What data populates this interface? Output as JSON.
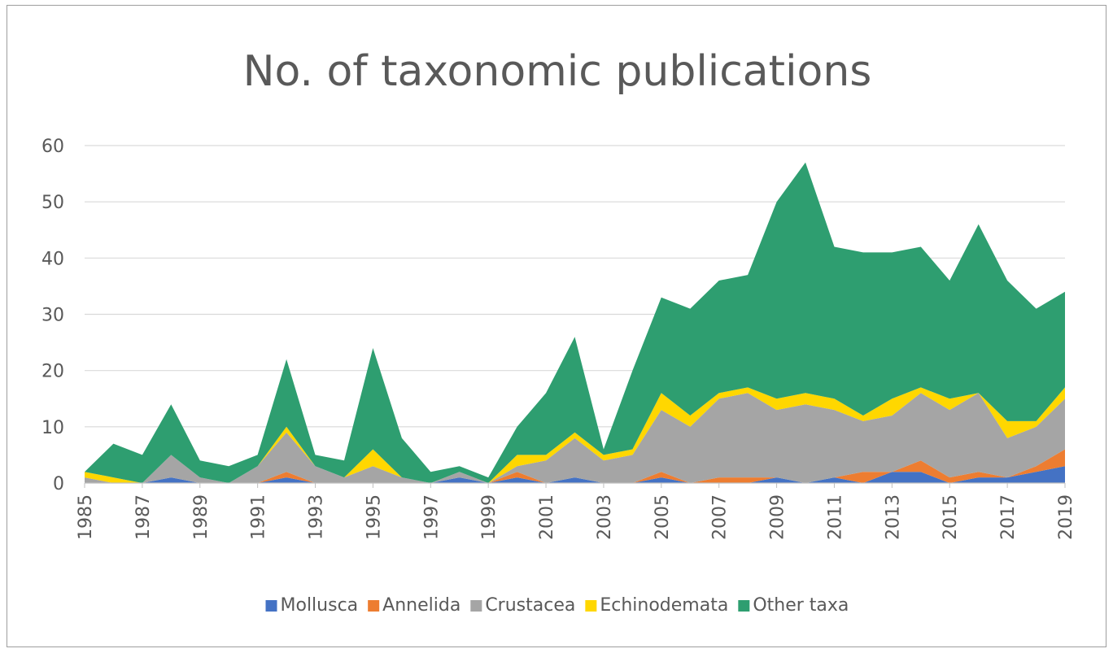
{
  "chart_data": {
    "type": "area",
    "stacked": true,
    "title": "No. of taxonomic publications",
    "xlabel": "",
    "ylabel": "",
    "ylim": [
      0,
      60
    ],
    "yticks": [
      "0",
      "10",
      "20",
      "30",
      "40",
      "50",
      "60"
    ],
    "x": [
      1985,
      1986,
      1987,
      1988,
      1989,
      1990,
      1991,
      1992,
      1993,
      1994,
      1995,
      1996,
      1997,
      1998,
      1999,
      2000,
      2001,
      2002,
      2003,
      2004,
      2005,
      2006,
      2007,
      2008,
      2009,
      2010,
      2011,
      2012,
      2013,
      2014,
      2015,
      2016,
      2017,
      2018,
      2019
    ],
    "xtick_labels": [
      "1985",
      "1987",
      "1989",
      "1991",
      "1993",
      "1995",
      "1997",
      "1999",
      "2001",
      "2003",
      "2005",
      "2007",
      "2009",
      "2011",
      "2013",
      "2015",
      "2017",
      "2019"
    ],
    "grid": true,
    "legend_position": "bottom",
    "series": [
      {
        "name": "Mollusca",
        "color": "#4472C4",
        "values": [
          0,
          0,
          0,
          1,
          0,
          0,
          0,
          1,
          0,
          0,
          0,
          0,
          0,
          1,
          0,
          1,
          0,
          1,
          0,
          0,
          1,
          0,
          0,
          0,
          1,
          0,
          1,
          0,
          2,
          2,
          0,
          1,
          1,
          2,
          3
        ]
      },
      {
        "name": "Annelida",
        "color": "#ED7D31",
        "values": [
          0,
          0,
          0,
          0,
          0,
          0,
          0,
          1,
          0,
          0,
          0,
          0,
          0,
          0,
          0,
          1,
          0,
          0,
          0,
          0,
          1,
          0,
          1,
          1,
          0,
          0,
          0,
          2,
          0,
          2,
          1,
          1,
          0,
          1,
          3
        ]
      },
      {
        "name": "Crustacea",
        "color": "#A5A5A5",
        "values": [
          1,
          0,
          0,
          4,
          1,
          0,
          3,
          7,
          3,
          1,
          3,
          1,
          0,
          1,
          0,
          1,
          4,
          7,
          4,
          5,
          11,
          10,
          14,
          15,
          12,
          14,
          12,
          9,
          10,
          12,
          12,
          14,
          7,
          7,
          9
        ]
      },
      {
        "name": "Echinodemata",
        "color": "#FFD700",
        "values": [
          1,
          1,
          0,
          0,
          0,
          0,
          0,
          1,
          0,
          0,
          3,
          0,
          0,
          0,
          0,
          2,
          1,
          1,
          1,
          1,
          3,
          2,
          1,
          1,
          2,
          2,
          2,
          1,
          3,
          1,
          2,
          0,
          3,
          1,
          2
        ]
      },
      {
        "name": "Other taxa",
        "color": "#2E9E70",
        "values": [
          0,
          6,
          5,
          9,
          3,
          3,
          2,
          12,
          2,
          3,
          18,
          7,
          2,
          1,
          1,
          5,
          11,
          17,
          1,
          14,
          17,
          19,
          20,
          20,
          35,
          41,
          27,
          29,
          26,
          25,
          21,
          30,
          25,
          20,
          17
        ]
      }
    ]
  }
}
